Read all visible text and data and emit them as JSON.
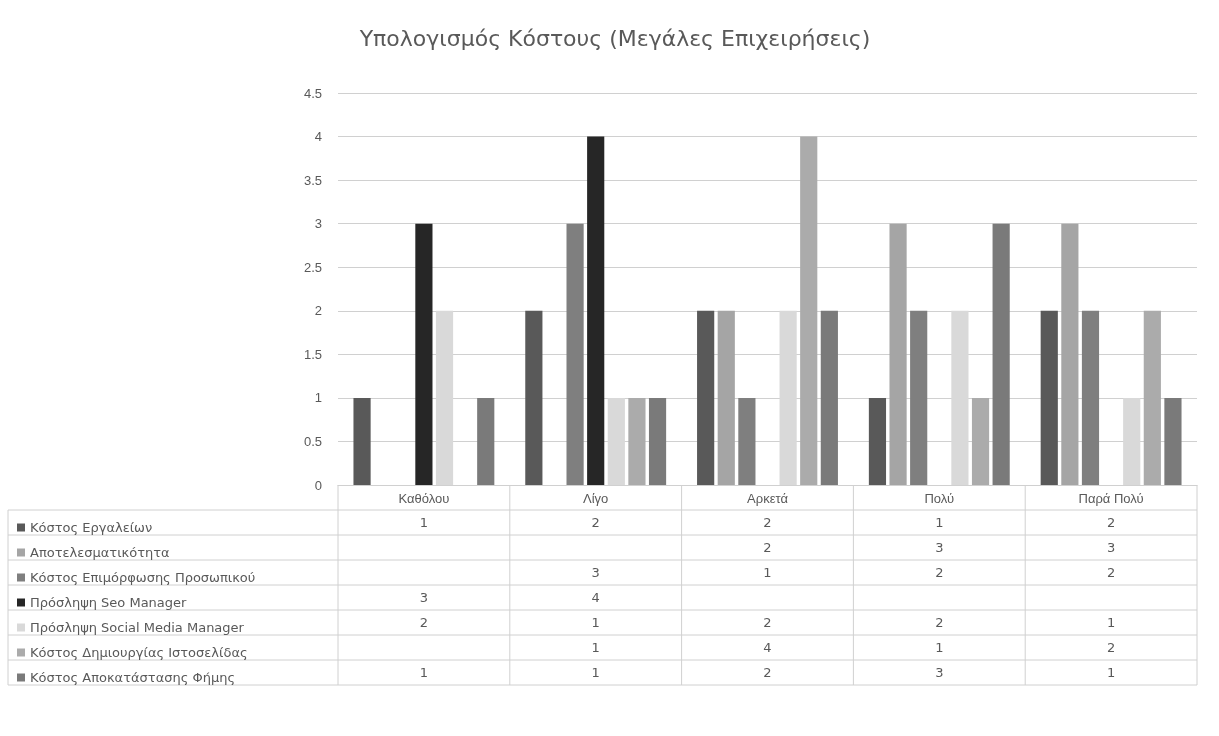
{
  "chart_data": {
    "type": "bar",
    "title": "Υπολογισμός Κόστους (Μεγάλες Επιχειρήσεις)",
    "categories": [
      "Καθόλου",
      "Λίγο",
      "Αρκετά",
      "Πολύ",
      "Παρά Πολύ"
    ],
    "series": [
      {
        "name": "Κόστος Εργαλείων",
        "color": "#595959",
        "values": [
          1,
          2,
          2,
          1,
          2
        ]
      },
      {
        "name": "Αποτελεσματικότητα",
        "color": "#a5a5a5",
        "values": [
          null,
          null,
          2,
          3,
          3
        ]
      },
      {
        "name": "Κόστος Επιμόρφωσης Προσωπικού",
        "color": "#7f7f7f",
        "values": [
          null,
          3,
          1,
          2,
          2
        ]
      },
      {
        "name": "Πρόσληψη Seo Manager",
        "color": "#262626",
        "values": [
          3,
          4,
          null,
          null,
          null
        ]
      },
      {
        "name": "Πρόσληψη Social Media Manager",
        "color": "#d9d9d9",
        "values": [
          2,
          1,
          2,
          2,
          1
        ]
      },
      {
        "name": "Κόστος Δημιουργίας Ιστοσελίδας",
        "color": "#ababab",
        "values": [
          null,
          1,
          4,
          1,
          2
        ]
      },
      {
        "name": "Κόστος Αποκατάστασης Φήμης",
        "color": "#7a7a7a",
        "values": [
          1,
          1,
          2,
          3,
          1
        ]
      }
    ],
    "ylim": [
      0,
      4.5
    ],
    "yticks": [
      0,
      0.5,
      1,
      1.5,
      2,
      2.5,
      3,
      3.5,
      4,
      4.5
    ],
    "grid": "y",
    "legend": "bottom left",
    "data_labels": true
  }
}
